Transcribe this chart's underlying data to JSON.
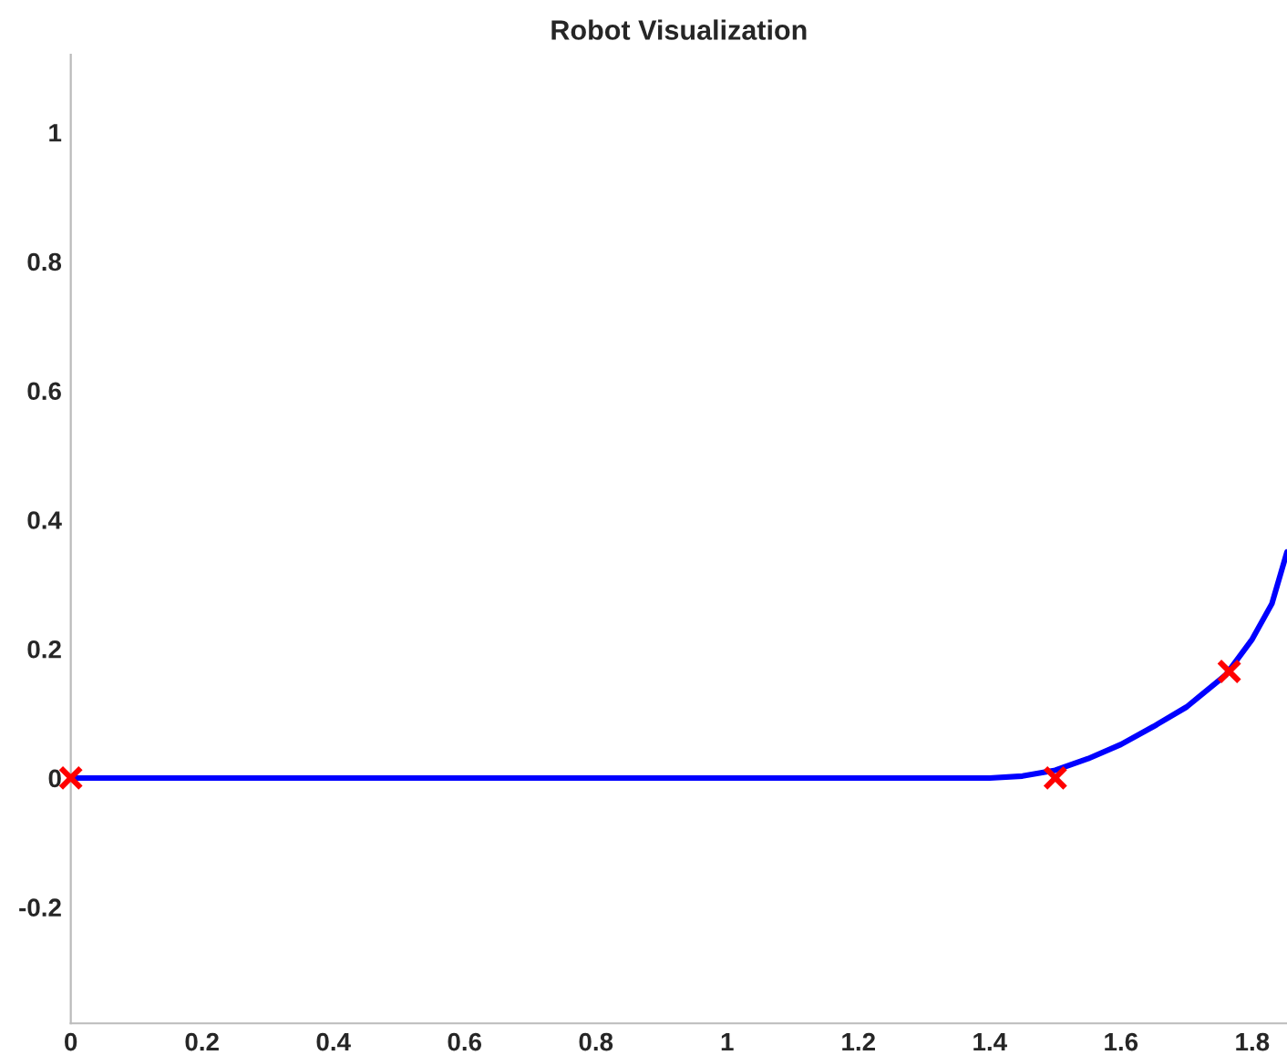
{
  "chart_data": {
    "type": "line",
    "title": "Robot Visualization",
    "xlim": [
      0,
      1.853
    ],
    "ylim": [
      -0.38,
      1.12
    ],
    "xticks": [
      0,
      0.2,
      0.4,
      0.6,
      0.8,
      1,
      1.2,
      1.4,
      1.6,
      1.8
    ],
    "yticks": [
      -0.2,
      0,
      0.2,
      0.4,
      0.6,
      0.8,
      1
    ],
    "grid": false,
    "series": [
      {
        "color": "#0000ff",
        "marker": "none",
        "line_style": "solid",
        "x": [
          0,
          0.4,
          0.8,
          1.2,
          1.4,
          1.45,
          1.5,
          1.55,
          1.6,
          1.65,
          1.7,
          1.76,
          1.8,
          1.83,
          1.853
        ],
        "values": [
          0,
          0,
          0,
          0,
          0,
          0.003,
          0.012,
          0.03,
          0.052,
          0.08,
          0.11,
          0.16,
          0.215,
          0.27,
          0.35
        ]
      },
      {
        "type": "scatter",
        "color": "#ff0000",
        "marker": "cross",
        "x": [
          0,
          1.5,
          1.765
        ],
        "values": [
          0,
          0,
          0.165
        ]
      }
    ]
  }
}
